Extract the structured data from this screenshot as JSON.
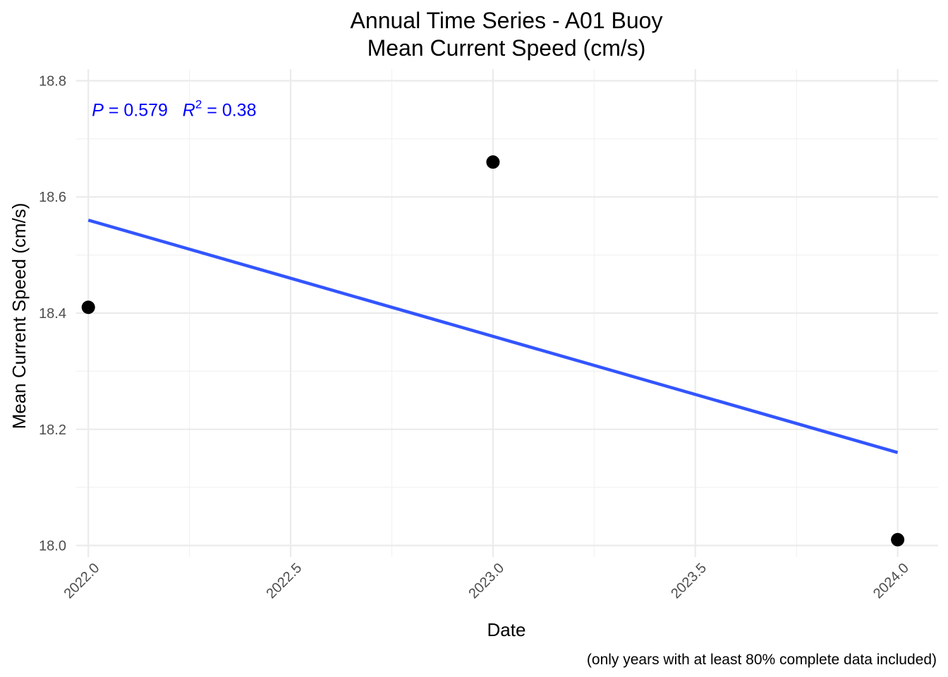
{
  "chart_data": {
    "type": "scatter",
    "title": "Annual Time Series - A01 Buoy",
    "subtitle": "Mean Current Speed (cm/s)",
    "xlabel": "Date",
    "ylabel": "Mean Current Speed (cm/s)",
    "caption": "(only years with at least 80% complete data included)",
    "xlim": [
      2021.97,
      2024.1
    ],
    "ylim": [
      17.98,
      18.82
    ],
    "x_ticks": [
      2022.0,
      2022.5,
      2023.0,
      2023.5,
      2024.0
    ],
    "x_tick_labels": [
      "2022.0",
      "2022.5",
      "2023.0",
      "2023.5",
      "2024.0"
    ],
    "y_ticks": [
      18.0,
      18.2,
      18.4,
      18.6,
      18.8
    ],
    "y_tick_labels": [
      "18.0",
      "18.2",
      "18.4",
      "18.6",
      "18.8"
    ],
    "x_minor_ticks": [
      2022.25,
      2022.75,
      2023.25,
      2023.75
    ],
    "y_minor_ticks": [
      18.1,
      18.3,
      18.5,
      18.7
    ],
    "points": {
      "x": [
        2022.0,
        2023.0,
        2024.0
      ],
      "y": [
        18.41,
        18.66,
        18.01
      ],
      "color": "#000000"
    },
    "trend_line": {
      "x": [
        2022.0,
        2024.0
      ],
      "y": [
        18.56,
        18.16
      ],
      "color": "#3355ff"
    },
    "annotation": {
      "p_symbol": "P",
      "p_text": " = 0.579",
      "r_symbol": "R",
      "r_superscript": "2",
      "r_text": " = 0.38",
      "color": "#0000ff",
      "x": 2022.0,
      "y": 18.75
    },
    "grid": true,
    "legend": "none"
  }
}
